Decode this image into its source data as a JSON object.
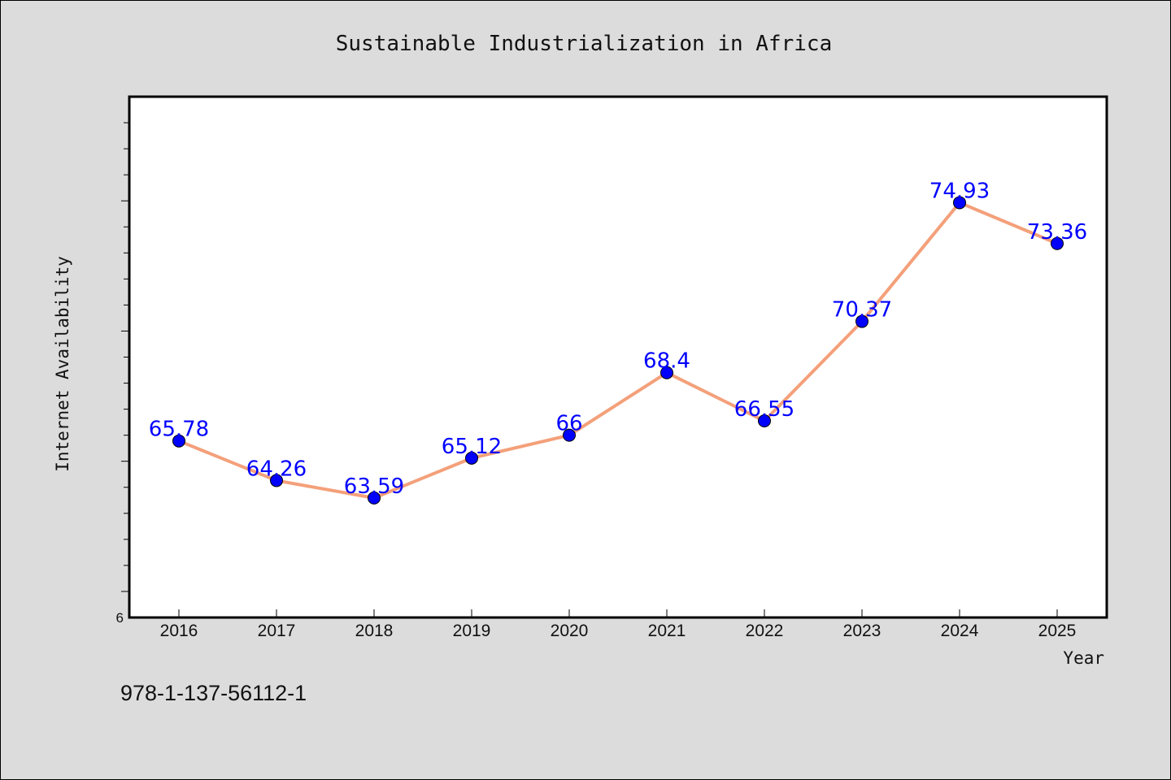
{
  "chart_data": {
    "type": "line",
    "title": "Sustainable Industrialization in Africa",
    "xlabel": "Year",
    "ylabel": "Internet Availability",
    "categories": [
      "2016",
      "2017",
      "2018",
      "2019",
      "2020",
      "2021",
      "2022",
      "2023",
      "2024",
      "2025"
    ],
    "series": [
      {
        "values": [
          65.78,
          64.26,
          63.59,
          65.12,
          66,
          68.4,
          66.55,
          70.37,
          74.93,
          73.36
        ]
      }
    ],
    "data_labels": [
      "65.78",
      "64.26",
      "63.59",
      "65.12",
      "66",
      "68.4",
      "66.55",
      "70.37",
      "74.93",
      "73.36"
    ],
    "ylim": [
      59,
      79
    ],
    "y_tick_labels": [
      "6"
    ],
    "grid": false,
    "legend": "none",
    "line_color": "#f4a07a",
    "marker_color": "#0000ff",
    "label_color": "#0000ff",
    "plot_background": "#ffffff",
    "page_background": "#dcdcdc"
  },
  "footer": {
    "isbn": "978-1-137-56112-1"
  }
}
